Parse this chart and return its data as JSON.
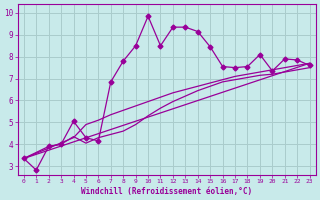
{
  "bg_color": "#c8eaea",
  "line_color": "#990099",
  "grid_color": "#aacccc",
  "xlabel": "Windchill (Refroidissement éolien,°C)",
  "xlabel_color": "#990099",
  "tick_color": "#990099",
  "xlim": [
    -0.5,
    23.5
  ],
  "ylim": [
    2.6,
    10.4
  ],
  "xticks": [
    0,
    1,
    2,
    3,
    4,
    5,
    6,
    7,
    8,
    9,
    10,
    11,
    12,
    13,
    14,
    15,
    16,
    17,
    18,
    19,
    20,
    21,
    22,
    23
  ],
  "yticks": [
    3,
    4,
    5,
    6,
    7,
    8,
    9,
    10
  ],
  "line1_x": [
    0,
    1,
    2,
    3,
    4,
    5,
    6,
    7,
    8,
    9,
    10,
    11,
    12,
    13,
    14,
    15,
    16,
    17,
    18,
    19,
    20,
    21,
    22,
    23
  ],
  "line1_y": [
    3.35,
    2.82,
    3.9,
    4.0,
    5.05,
    4.3,
    4.15,
    6.85,
    7.8,
    8.5,
    9.85,
    8.5,
    9.35,
    9.35,
    9.15,
    8.45,
    7.55,
    7.5,
    7.55,
    8.1,
    7.35,
    7.9,
    7.85,
    7.6
  ],
  "line2_x": [
    0,
    23
  ],
  "line2_y": [
    3.35,
    7.7
  ],
  "line3_x": [
    0,
    4,
    5,
    6,
    7,
    8,
    9,
    10,
    11,
    12,
    13,
    14,
    15,
    16,
    17,
    18,
    19,
    20,
    21,
    22,
    23
  ],
  "line3_y": [
    3.35,
    4.3,
    4.9,
    5.1,
    5.35,
    5.55,
    5.75,
    5.95,
    6.15,
    6.35,
    6.5,
    6.65,
    6.8,
    6.95,
    7.1,
    7.2,
    7.3,
    7.4,
    7.5,
    7.6,
    7.7
  ],
  "line4_x": [
    0,
    2,
    3,
    4,
    5,
    6,
    7,
    8,
    9,
    10,
    11,
    12,
    13,
    14,
    15,
    16,
    17,
    18,
    19,
    20,
    21,
    22,
    23
  ],
  "line4_y": [
    3.35,
    3.9,
    4.0,
    4.35,
    4.05,
    4.3,
    4.45,
    4.6,
    4.9,
    5.3,
    5.65,
    5.95,
    6.2,
    6.45,
    6.65,
    6.85,
    6.95,
    7.05,
    7.15,
    7.2,
    7.3,
    7.4,
    7.5
  ],
  "marker_x": [
    0,
    1,
    2,
    3,
    4,
    5,
    6,
    7,
    8,
    9,
    10,
    11,
    12,
    13,
    14,
    15,
    16,
    17,
    18,
    19,
    20,
    21,
    22,
    23
  ],
  "marker_y": [
    3.35,
    2.82,
    3.9,
    4.0,
    5.05,
    4.3,
    4.15,
    6.85,
    7.8,
    8.5,
    9.85,
    8.5,
    9.35,
    9.35,
    9.15,
    8.45,
    7.55,
    7.5,
    7.55,
    8.1,
    7.35,
    7.9,
    7.85,
    7.6
  ]
}
